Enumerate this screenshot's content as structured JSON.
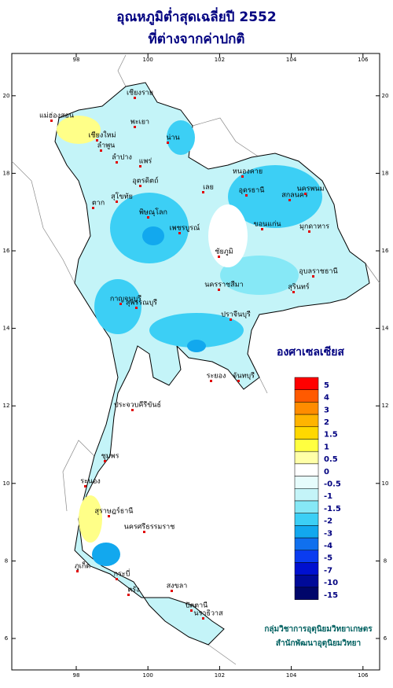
{
  "title": [
    "อุณหภูมิต่ำสุดเฉลี่ยปี 2552",
    "ที่ต่างจากค่าปกติ"
  ],
  "grid": {
    "lon_ticks": [
      98,
      100,
      102,
      104,
      106
    ],
    "lat_ticks": [
      6,
      8,
      10,
      12,
      14,
      16,
      18,
      20
    ]
  },
  "unit": "องศาเซลเซียส",
  "legend": [
    {
      "label": "5",
      "color": "#ff0000"
    },
    {
      "label": "4",
      "color": "#ff5a00"
    },
    {
      "label": "3",
      "color": "#ff8c00"
    },
    {
      "label": "2",
      "color": "#ffb400"
    },
    {
      "label": "1.5",
      "color": "#ffd800"
    },
    {
      "label": "1",
      "color": "#ffff40"
    },
    {
      "label": "0.5",
      "color": "#ffffa8"
    },
    {
      "label": "0",
      "color": "#ffffff"
    },
    {
      "label": "-0.5",
      "color": "#e6fcfc"
    },
    {
      "label": "-1",
      "color": "#c4f4f8"
    },
    {
      "label": "-1.5",
      "color": "#86e8f6"
    },
    {
      "label": "-2",
      "color": "#3ccff5"
    },
    {
      "label": "-3",
      "color": "#12a8ee"
    },
    {
      "label": "-4",
      "color": "#1070ee"
    },
    {
      "label": "-5",
      "color": "#0a3cf0"
    },
    {
      "label": "-7",
      "color": "#0010d0"
    },
    {
      "label": "-10",
      "color": "#000a98"
    },
    {
      "label": "-15",
      "color": "#00066a"
    }
  ],
  "provinces": [
    "เชียงราย",
    "แม่ฮ่องสอน",
    "เชียงใหม่",
    "พะเยา",
    "น่าน",
    "ลำพูน",
    "ลำปาง",
    "แพร่",
    "อุตรดิตถ์",
    "ตาก",
    "สุโขทัย",
    "พิษณุโลก",
    "หนองคาย",
    "อุดรธานี",
    "สกลนคร",
    "นครพนม",
    "เลย",
    "ขอนแก่น",
    "มุกดาหาร",
    "เพชรบูรณ์",
    "ชัยภูมิ",
    "อุบลราชธานี",
    "นครราชสีมา",
    "สุรินทร์",
    "กาญจนบุรี",
    "สุพรรณบุรี",
    "ปราจีนบุรี",
    "ระยอง",
    "จันทบุรี",
    "ประจวบคีรีขันธ์",
    "ชุมพร",
    "ระนอง",
    "สุราษฎร์ธานี",
    "นครศรีธรรมราช",
    "ภูเก็ต",
    "กระบี่",
    "ตรัง",
    "สงขลา",
    "ปัตตานี",
    "นราธิวาส"
  ],
  "credits": [
    "กลุ่มวิชาการอุตุนิยมวิทยาเกษตร",
    "สำนักพัฒนาอุตุนิยมวิทยา"
  ]
}
